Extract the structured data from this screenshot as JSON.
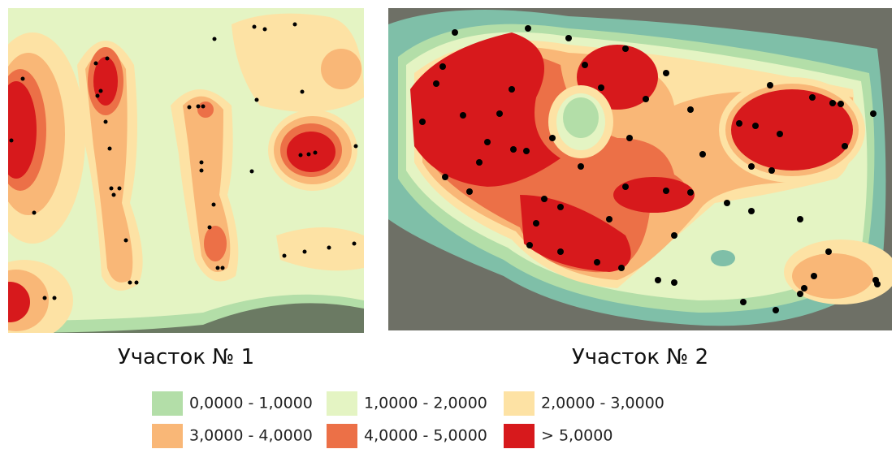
{
  "panels": [
    {
      "caption": "Участок № 1"
    },
    {
      "caption": "Участок № 2"
    }
  ],
  "legend": {
    "items": [
      {
        "label": "0,0000 - 1,0000",
        "color": "#b3dea8"
      },
      {
        "label": "1,0000 - 2,0000",
        "color": "#e4f4c3"
      },
      {
        "label": "2,0000 - 3,0000",
        "color": "#fde2a4"
      },
      {
        "label": "3,0000 - 4,0000",
        "color": "#f9b777"
      },
      {
        "label": "4,0000 - 5,0000",
        "color": "#ec7047"
      },
      {
        "label": "> 5,0000",
        "color": "#d7191c"
      }
    ]
  }
}
